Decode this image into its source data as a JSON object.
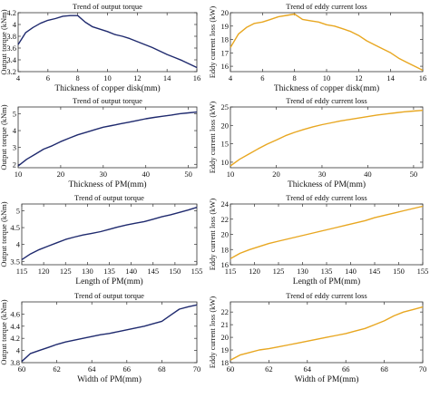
{
  "chart_data": [
    {
      "type": "line",
      "title": "Trend of output torque",
      "xlabel": "Thickness of copper disk(mm)",
      "ylabel": "Output torque (kNm)",
      "xlim": [
        4,
        16
      ],
      "ylim": [
        3.2,
        4.2
      ],
      "xticks": [
        "4",
        "6",
        "8",
        "10",
        "12",
        "14",
        "16"
      ],
      "yticks": [
        "3.2",
        "3.4",
        "3.6",
        "3.8",
        "4",
        "4.2"
      ],
      "grid": false,
      "color": "#1f2a6e",
      "x": [
        4,
        4.5,
        5,
        5.5,
        6,
        6.5,
        7,
        7.5,
        8,
        8.5,
        9,
        9.5,
        10,
        10.5,
        11,
        11.5,
        12,
        12.5,
        13,
        13.5,
        14,
        14.5,
        15,
        15.5,
        16
      ],
      "y": [
        3.66,
        3.86,
        3.95,
        4.02,
        4.07,
        4.1,
        4.14,
        4.15,
        4.15,
        4.04,
        3.96,
        3.92,
        3.88,
        3.83,
        3.8,
        3.76,
        3.71,
        3.66,
        3.61,
        3.55,
        3.49,
        3.44,
        3.39,
        3.33,
        3.27
      ]
    },
    {
      "type": "line",
      "title": "Trend of eddy current loss",
      "xlabel": "Thickness of copper disk(mm)",
      "ylabel": "Eddy current loss (kW)",
      "xlim": [
        4,
        16
      ],
      "ylim": [
        15.6,
        20
      ],
      "xticks": [
        "4",
        "6",
        "8",
        "10",
        "12",
        "14",
        "16"
      ],
      "yticks": [
        "16",
        "17",
        "18",
        "19",
        "20"
      ],
      "grid": false,
      "color": "#e8a721",
      "x": [
        4,
        4.5,
        5,
        5.5,
        6,
        6.5,
        7,
        7.5,
        8,
        8.5,
        9,
        9.5,
        10,
        10.5,
        11,
        11.5,
        12,
        12.5,
        13,
        13.5,
        14,
        14.5,
        15,
        15.5,
        16
      ],
      "y": [
        17.4,
        18.4,
        18.9,
        19.2,
        19.3,
        19.5,
        19.7,
        19.8,
        19.9,
        19.5,
        19.4,
        19.3,
        19.1,
        19.0,
        18.8,
        18.6,
        18.3,
        17.9,
        17.6,
        17.3,
        17.0,
        16.6,
        16.3,
        16.0,
        15.7
      ]
    },
    {
      "type": "line",
      "title": "Trend of output torque",
      "xlabel": "Thickness of PM(mm)",
      "ylabel": "Output torque (kNm)",
      "xlim": [
        10,
        52
      ],
      "ylim": [
        1.8,
        5.4
      ],
      "xticks": [
        "10",
        "20",
        "30",
        "40",
        "50"
      ],
      "yticks": [
        "2",
        "3",
        "4",
        "5"
      ],
      "grid": false,
      "color": "#1f2a6e",
      "x": [
        10,
        12,
        14,
        16,
        18,
        20,
        22,
        24,
        26,
        28,
        30,
        32,
        34,
        36,
        38,
        40,
        42,
        44,
        46,
        48,
        50,
        52
      ],
      "y": [
        1.9,
        2.3,
        2.6,
        2.9,
        3.1,
        3.35,
        3.55,
        3.75,
        3.9,
        4.05,
        4.2,
        4.3,
        4.4,
        4.5,
        4.6,
        4.7,
        4.78,
        4.85,
        4.92,
        5.0,
        5.05,
        5.1
      ]
    },
    {
      "type": "line",
      "title": "Trend of eddy current loss",
      "xlabel": "Thickness of PM(mm)",
      "ylabel": "Eddy current loss (kW)",
      "xlim": [
        10,
        52
      ],
      "ylim": [
        8.5,
        25
      ],
      "xticks": [
        "10",
        "20",
        "30",
        "40",
        "50"
      ],
      "yticks": [
        "10",
        "15",
        "20",
        "25"
      ],
      "grid": false,
      "color": "#e8a721",
      "x": [
        10,
        12,
        14,
        16,
        18,
        20,
        22,
        24,
        26,
        28,
        30,
        32,
        34,
        36,
        38,
        40,
        42,
        44,
        46,
        48,
        50,
        52
      ],
      "y": [
        9.0,
        10.8,
        12.2,
        13.6,
        14.9,
        16.0,
        17.2,
        18.1,
        18.9,
        19.6,
        20.2,
        20.7,
        21.2,
        21.6,
        22.0,
        22.4,
        22.8,
        23.1,
        23.4,
        23.7,
        23.9,
        24.1
      ]
    },
    {
      "type": "line",
      "title": "Trend of output torque",
      "xlabel": "Length of PM(mm)",
      "ylabel": "Output torque (kNm)",
      "xlim": [
        115,
        155
      ],
      "ylim": [
        3.4,
        5.2
      ],
      "xticks": [
        "115",
        "120",
        "125",
        "130",
        "135",
        "140",
        "145",
        "150",
        "155"
      ],
      "yticks": [
        "3.5",
        "4",
        "4.5",
        "5"
      ],
      "grid": false,
      "color": "#1f2a6e",
      "x": [
        115,
        117,
        119,
        121,
        123,
        125,
        127,
        129,
        131,
        133,
        135,
        137,
        139,
        141,
        143,
        145,
        147,
        149,
        151,
        153,
        155
      ],
      "y": [
        3.55,
        3.72,
        3.85,
        3.95,
        4.05,
        4.15,
        4.22,
        4.28,
        4.33,
        4.38,
        4.45,
        4.52,
        4.58,
        4.63,
        4.68,
        4.75,
        4.82,
        4.88,
        4.95,
        5.02,
        5.1
      ]
    },
    {
      "type": "line",
      "title": "Trend of eddy current loss",
      "xlabel": "Length of PM(mm)",
      "ylabel": "Eddy current loss (kW)",
      "xlim": [
        115,
        155
      ],
      "ylim": [
        16,
        24
      ],
      "xticks": [
        "115",
        "120",
        "125",
        "130",
        "135",
        "140",
        "145",
        "150",
        "155"
      ],
      "yticks": [
        "16",
        "18",
        "20",
        "22",
        "24"
      ],
      "grid": false,
      "color": "#e8a721",
      "x": [
        115,
        117,
        119,
        121,
        123,
        125,
        127,
        129,
        131,
        133,
        135,
        137,
        139,
        141,
        143,
        145,
        147,
        149,
        151,
        153,
        155
      ],
      "y": [
        16.8,
        17.5,
        18.0,
        18.4,
        18.8,
        19.1,
        19.4,
        19.7,
        20.0,
        20.3,
        20.6,
        20.9,
        21.2,
        21.5,
        21.8,
        22.2,
        22.5,
        22.8,
        23.1,
        23.4,
        23.7
      ]
    },
    {
      "type": "line",
      "title": "Trend of output torque",
      "xlabel": "Width of PM(mm)",
      "ylabel": "Output torque (kNm)",
      "xlim": [
        60,
        70
      ],
      "ylim": [
        3.8,
        4.8
      ],
      "xticks": [
        "60",
        "62",
        "64",
        "66",
        "68",
        "70"
      ],
      "yticks": [
        "3.8",
        "4",
        "4.2",
        "4.4",
        "4.6"
      ],
      "grid": false,
      "color": "#1f2a6e",
      "x": [
        60,
        60.5,
        61,
        61.5,
        62,
        62.5,
        63,
        63.5,
        64,
        64.5,
        65,
        65.5,
        66,
        66.5,
        67,
        67.5,
        68,
        68.5,
        69,
        69.5,
        70
      ],
      "y": [
        3.82,
        3.95,
        4.0,
        4.05,
        4.1,
        4.14,
        4.17,
        4.2,
        4.23,
        4.26,
        4.28,
        4.31,
        4.34,
        4.37,
        4.4,
        4.44,
        4.48,
        4.58,
        4.68,
        4.72,
        4.75
      ]
    },
    {
      "type": "line",
      "title": "Trend of eddy current loss",
      "xlabel": "Width of PM(mm)",
      "ylabel": "Eddy current loss (kW)",
      "xlim": [
        60,
        70
      ],
      "ylim": [
        18,
        22.8
      ],
      "xticks": [
        "60",
        "62",
        "64",
        "66",
        "68",
        "70"
      ],
      "yticks": [
        "18",
        "19",
        "20",
        "21",
        "22"
      ],
      "grid": false,
      "color": "#e8a721",
      "x": [
        60,
        60.5,
        61,
        61.5,
        62,
        62.5,
        63,
        63.5,
        64,
        64.5,
        65,
        65.5,
        66,
        66.5,
        67,
        67.5,
        68,
        68.5,
        69,
        69.5,
        70
      ],
      "y": [
        18.2,
        18.6,
        18.8,
        19.0,
        19.1,
        19.25,
        19.4,
        19.55,
        19.7,
        19.85,
        20.0,
        20.15,
        20.3,
        20.5,
        20.7,
        21.0,
        21.3,
        21.7,
        22.0,
        22.2,
        22.4
      ]
    }
  ]
}
